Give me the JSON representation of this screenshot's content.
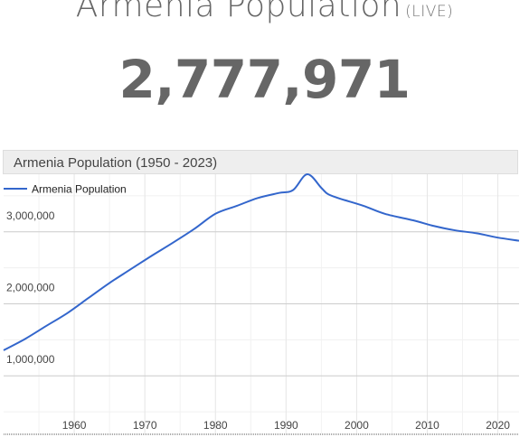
{
  "header": {
    "title": "Armenia Population",
    "live_label": "(LIVE)",
    "live_count": "2,777,971"
  },
  "chart_data": {
    "type": "line",
    "title": "Armenia Population (1950 - 2023)",
    "legend": "top-left",
    "xlim": [
      1950,
      2023
    ],
    "ylim": [
      200000,
      3800000
    ],
    "grid": true,
    "x_ticks": [
      1960,
      1970,
      1980,
      1990,
      2000,
      2010,
      2020
    ],
    "y_ticks": [
      1000000,
      2000000,
      3000000
    ],
    "x_tick_labels": [
      "1960",
      "1970",
      "1980",
      "1990",
      "2000",
      "2010",
      "2020"
    ],
    "y_tick_labels": [
      "1,000,000",
      "2,000,000",
      "3,000,000"
    ],
    "series": [
      {
        "name": "Armenia Population",
        "color": "#3366cc",
        "x": [
          1950,
          1953,
          1956,
          1959,
          1962,
          1965,
          1968,
          1971,
          1974,
          1977,
          1980,
          1983,
          1986,
          1989,
          1991,
          1993,
          1995,
          1996,
          1998,
          2001,
          2004,
          2008,
          2011,
          2014,
          2017,
          2020,
          2023
        ],
        "values": [
          1354000,
          1510000,
          1690000,
          1870000,
          2080000,
          2290000,
          2480000,
          2670000,
          2850000,
          3040000,
          3250000,
          3360000,
          3470000,
          3540000,
          3580000,
          3800000,
          3610000,
          3520000,
          3450000,
          3360000,
          3250000,
          3160000,
          3080000,
          3020000,
          2980000,
          2920000,
          2877000
        ]
      }
    ]
  }
}
